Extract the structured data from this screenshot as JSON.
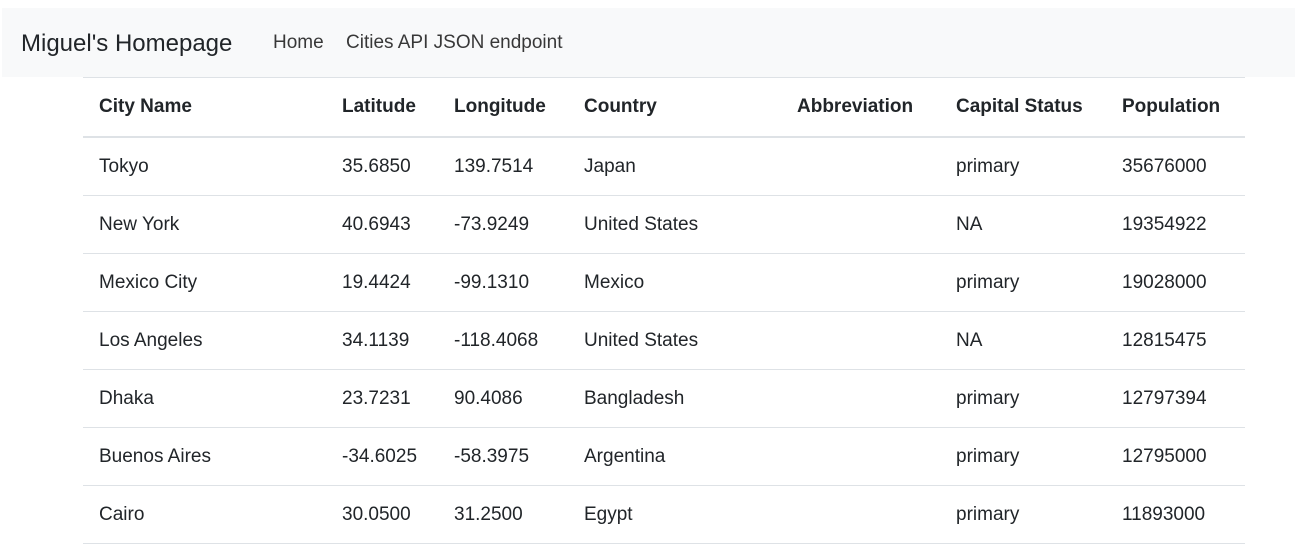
{
  "navbar": {
    "brand": "Miguel's Homepage",
    "links": [
      {
        "label": "Home"
      },
      {
        "label": "Cities API JSON endpoint"
      }
    ]
  },
  "table": {
    "headers": [
      "City Name",
      "Latitude",
      "Longitude",
      "Country",
      "Abbreviation",
      "Capital Status",
      "Population"
    ],
    "rows": [
      [
        "Tokyo",
        "35.6850",
        "139.7514",
        "Japan",
        "",
        "primary",
        "35676000"
      ],
      [
        "New York",
        "40.6943",
        "-73.9249",
        "United States",
        "",
        "NA",
        "19354922"
      ],
      [
        "Mexico City",
        "19.4424",
        "-99.1310",
        "Mexico",
        "",
        "primary",
        "19028000"
      ],
      [
        "Los Angeles",
        "34.1139",
        "-118.4068",
        "United States",
        "",
        "NA",
        "12815475"
      ],
      [
        "Dhaka",
        "23.7231",
        "90.4086",
        "Bangladesh",
        "",
        "primary",
        "12797394"
      ],
      [
        "Buenos Aires",
        "-34.6025",
        "-58.3975",
        "Argentina",
        "",
        "primary",
        "12795000"
      ],
      [
        "Cairo",
        "30.0500",
        "31.2500",
        "Egypt",
        "",
        "primary",
        "11893000"
      ]
    ]
  },
  "colors": {
    "navbar_bg": "#f8f9fa",
    "text": "#212529",
    "border": "#dee2e6"
  }
}
